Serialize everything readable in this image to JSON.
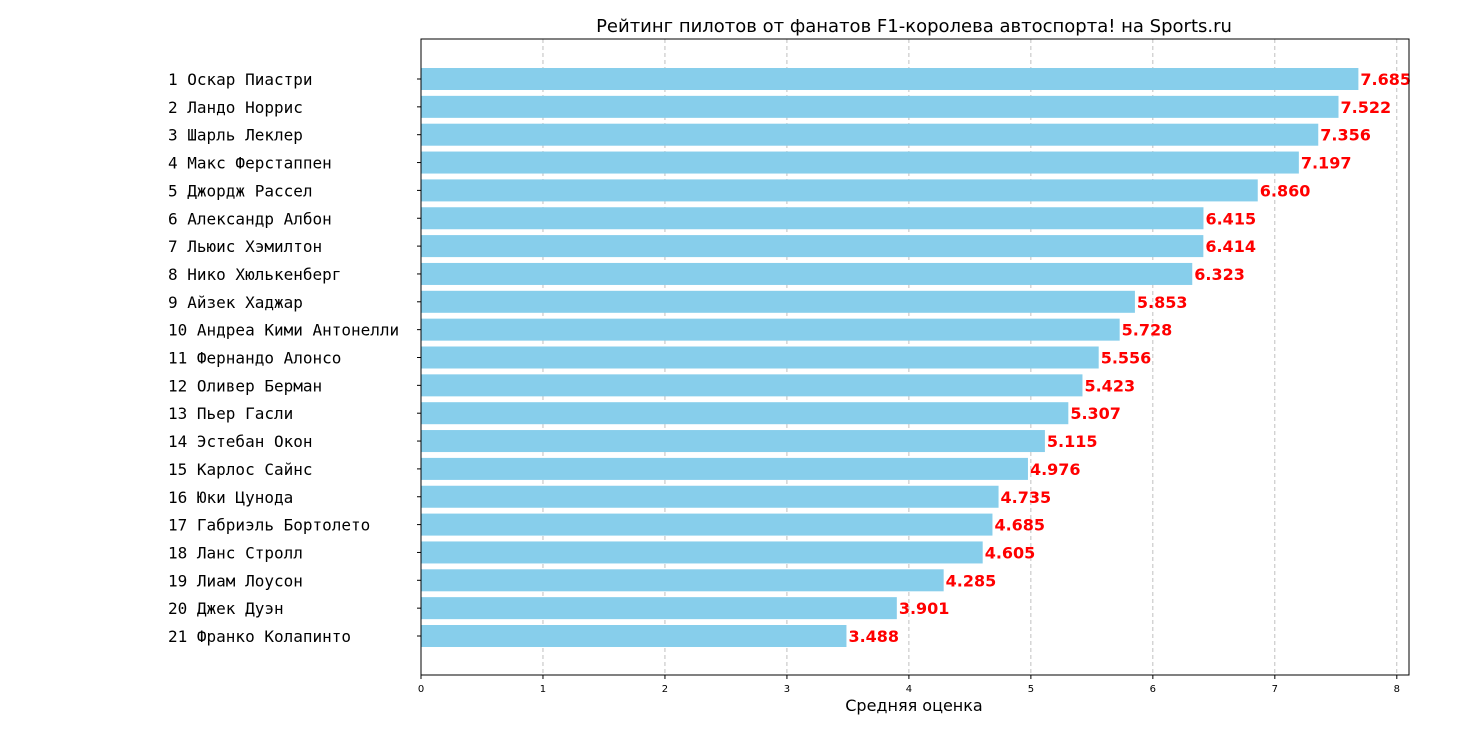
{
  "chart_data": {
    "type": "bar",
    "orientation": "horizontal",
    "title": "Рейтинг пилотов от фанатов F1-королева автоспорта! на Sports.ru",
    "xlabel": "Средняя оценка",
    "ylabel": "",
    "xlim": [
      0,
      8.1
    ],
    "xticks": [
      0,
      1,
      2,
      3,
      4,
      5,
      6,
      7,
      8
    ],
    "grid": "x-dashed",
    "bar_color": "#87ceeb",
    "value_label_color": "#ff0000",
    "categories": [
      "1 Оскар Пиастри",
      "2 Ландо Норрис",
      "3 Шарль Леклер",
      "4 Макс Ферстаппен",
      "5 Джордж Рассел",
      "6 Александр Албон",
      "7 Льюис Хэмилтон",
      "8 Нико Хюлькенберг",
      "9 Айзек Хаджар",
      "10 Андреа Кими Антонелли",
      "11 Фернандо Алонсо",
      "12 Оливер Берман",
      "13 Пьер Гасли",
      "14 Эстебан Окон",
      "15 Карлос Сайнс",
      "16 Юки Цунода",
      "17 Габриэль Бортолето",
      "18 Ланс Стролл",
      "19 Лиам Лоусон",
      "20 Джек Дуэн",
      "21 Франко Колапинто"
    ],
    "values": [
      7.685,
      7.522,
      7.356,
      7.197,
      6.86,
      6.415,
      6.414,
      6.323,
      5.853,
      5.728,
      5.556,
      5.423,
      5.307,
      5.115,
      4.976,
      4.735,
      4.685,
      4.605,
      4.285,
      3.901,
      3.488
    ],
    "value_labels": [
      "7.685",
      "7.522",
      "7.356",
      "7.197",
      "6.860",
      "6.415",
      "6.414",
      "6.323",
      "5.853",
      "5.728",
      "5.556",
      "5.423",
      "5.307",
      "5.115",
      "4.976",
      "4.735",
      "4.685",
      "4.605",
      "4.285",
      "3.901",
      "3.488"
    ]
  }
}
